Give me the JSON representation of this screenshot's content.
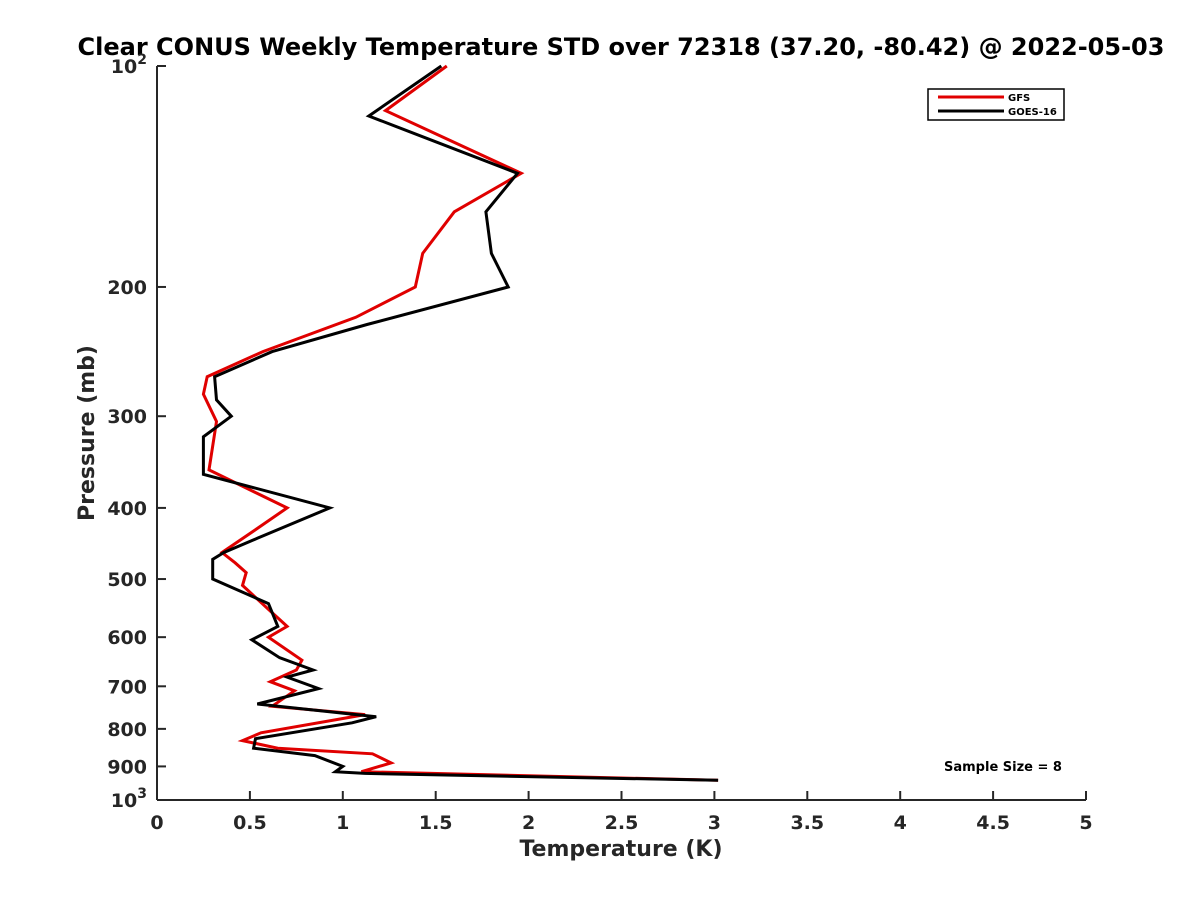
{
  "chart_data": {
    "type": "line",
    "title": "Clear CONUS Weekly Temperature STD over 72318 (37.20, -80.42) @ 2022-05-03",
    "xlabel": "Temperature (K)",
    "ylabel": "Pressure (mb)",
    "xlim": [
      0,
      5
    ],
    "ylim": [
      100,
      1000
    ],
    "y_scale": "log",
    "y_reversed": true,
    "x_ticks": [
      "0",
      "0.5",
      "1",
      "1.5",
      "2",
      "2.5",
      "3",
      "3.5",
      "4",
      "4.5",
      "5"
    ],
    "x_tick_values": [
      0,
      0.5,
      1,
      1.5,
      2,
      2.5,
      3,
      3.5,
      4,
      4.5,
      5
    ],
    "y_ticks": [
      {
        "value": 100,
        "label": "10",
        "sup": "2"
      },
      {
        "value": 200,
        "label": "200",
        "sup": ""
      },
      {
        "value": 300,
        "label": "300",
        "sup": ""
      },
      {
        "value": 400,
        "label": "400",
        "sup": ""
      },
      {
        "value": 500,
        "label": "500",
        "sup": ""
      },
      {
        "value": 600,
        "label": "600",
        "sup": ""
      },
      {
        "value": 700,
        "label": "700",
        "sup": ""
      },
      {
        "value": 800,
        "label": "800",
        "sup": ""
      },
      {
        "value": 900,
        "label": "900",
        "sup": ""
      },
      {
        "value": 1000,
        "label": "10",
        "sup": "3"
      }
    ],
    "grid": false,
    "legend_position": "top-right",
    "annotation": "Sample Size = 8",
    "series": [
      {
        "name": "GFS",
        "color": "#e00000",
        "points": [
          [
            1.56,
            100
          ],
          [
            1.23,
            115
          ],
          [
            1.96,
            140
          ],
          [
            1.6,
            158
          ],
          [
            1.43,
            180
          ],
          [
            1.39,
            200
          ],
          [
            1.07,
            220
          ],
          [
            0.57,
            245
          ],
          [
            0.27,
            265
          ],
          [
            0.25,
            280
          ],
          [
            0.32,
            305
          ],
          [
            0.28,
            355
          ],
          [
            0.7,
            400
          ],
          [
            0.52,
            430
          ],
          [
            0.35,
            460
          ],
          [
            0.42,
            475
          ],
          [
            0.48,
            490
          ],
          [
            0.46,
            510
          ],
          [
            0.6,
            550
          ],
          [
            0.7,
            580
          ],
          [
            0.6,
            600
          ],
          [
            0.78,
            645
          ],
          [
            0.75,
            665
          ],
          [
            0.61,
            690
          ],
          [
            0.74,
            710
          ],
          [
            0.62,
            745
          ],
          [
            1.12,
            765
          ],
          [
            0.56,
            810
          ],
          [
            0.46,
            830
          ],
          [
            0.65,
            850
          ],
          [
            1.16,
            865
          ],
          [
            1.26,
            890
          ],
          [
            1.1,
            915
          ],
          [
            3.02,
            940
          ]
        ]
      },
      {
        "name": "GOES-16",
        "color": "#000000",
        "points": [
          [
            1.53,
            100
          ],
          [
            1.14,
            117
          ],
          [
            1.94,
            140
          ],
          [
            1.77,
            158
          ],
          [
            1.8,
            180
          ],
          [
            1.89,
            200
          ],
          [
            1.13,
            225
          ],
          [
            0.62,
            245
          ],
          [
            0.31,
            265
          ],
          [
            0.32,
            285
          ],
          [
            0.4,
            300
          ],
          [
            0.25,
            320
          ],
          [
            0.25,
            360
          ],
          [
            0.93,
            400
          ],
          [
            0.54,
            440
          ],
          [
            0.36,
            460
          ],
          [
            0.3,
            470
          ],
          [
            0.3,
            500
          ],
          [
            0.6,
            540
          ],
          [
            0.65,
            580
          ],
          [
            0.51,
            605
          ],
          [
            0.66,
            640
          ],
          [
            0.84,
            665
          ],
          [
            0.7,
            680
          ],
          [
            0.87,
            705
          ],
          [
            0.54,
            740
          ],
          [
            1.18,
            770
          ],
          [
            1.05,
            785
          ],
          [
            0.53,
            825
          ],
          [
            0.52,
            850
          ],
          [
            0.85,
            870
          ],
          [
            1.0,
            900
          ],
          [
            0.96,
            915
          ],
          [
            1.12,
            920
          ],
          [
            3.02,
            940
          ]
        ]
      }
    ]
  }
}
